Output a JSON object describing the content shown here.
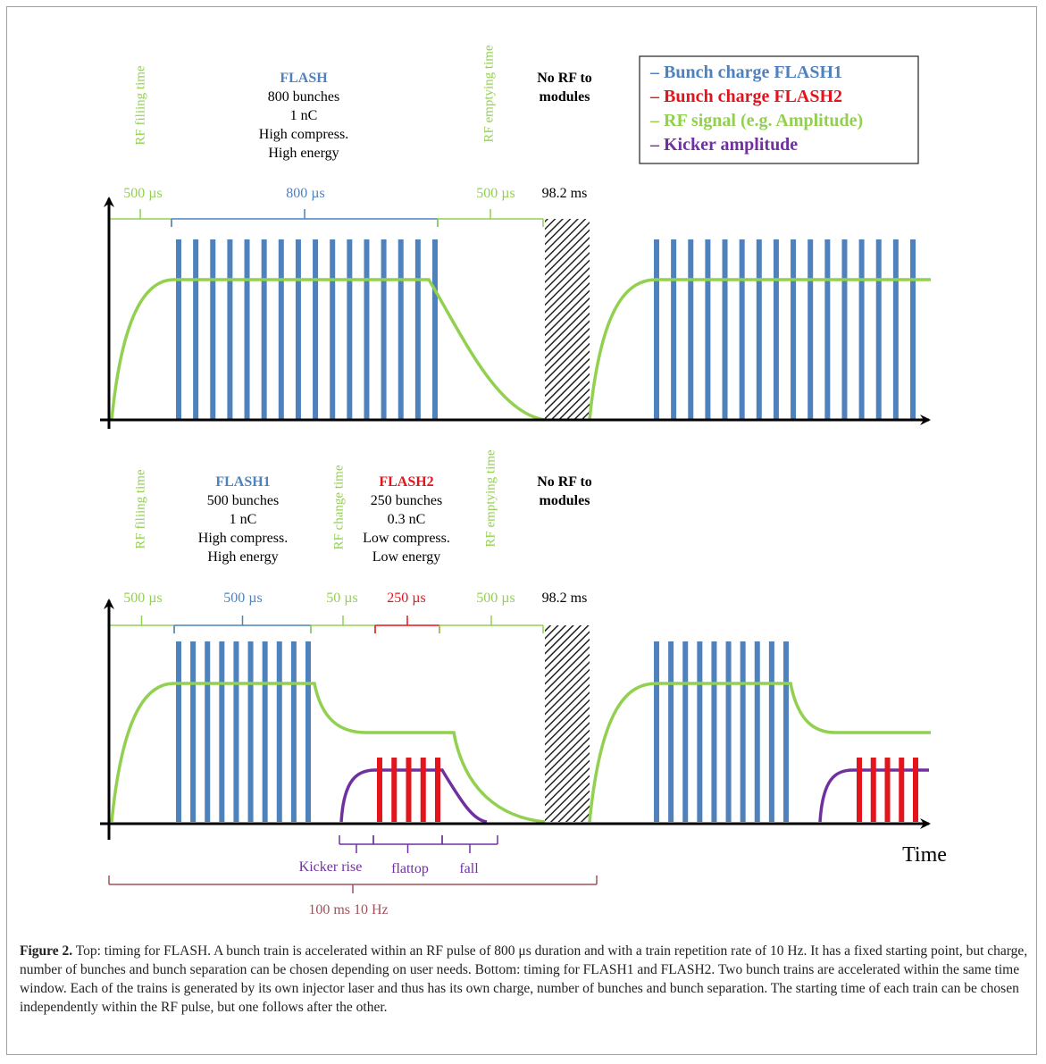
{
  "legend": [
    "– Bunch charge FLASH1",
    "– Bunch charge FLASH2",
    "– RF signal (e.g. Amplitude)",
    "– Kicker amplitude"
  ],
  "top": {
    "fill_label": "RF filiing time",
    "empty_label": "RF emptying time",
    "flash": [
      "FLASH",
      "800 bunches",
      "1 nC",
      "High compress.",
      "High energy"
    ],
    "no_rf": [
      "No RF to",
      "modules"
    ],
    "durations": [
      "500 µs",
      "800 µs",
      "500 µs",
      "98.2 ms"
    ]
  },
  "bottom": {
    "fill_label": "RF filiing time",
    "change_label": "RF change time",
    "empty_label": "RF emptying time",
    "flash1": [
      "FLASH1",
      "500 bunches",
      "1 nC",
      "High compress.",
      "High energy"
    ],
    "flash2": [
      "FLASH2",
      "250 bunches",
      "0.3 nC",
      "Low compress.",
      "Low energy"
    ],
    "no_rf": [
      "No RF to",
      "modules"
    ],
    "durations": [
      "500 µs",
      "500 µs",
      "50 µs",
      "250 µs",
      "500 µs",
      "98.2 ms"
    ],
    "kicker": [
      "Kicker rise",
      "flattop",
      "fall"
    ],
    "period": "100 ms  10 Hz",
    "time_label": "Time"
  },
  "caption": {
    "label": "Figure 2.",
    "text": " Top: timing for FLASH. A bunch train is accelerated within an RF pulse of 800 μs duration and with a train repetition rate of 10 Hz. It has a fixed starting point, but charge, number of bunches and bunch separation can be chosen depending on user needs. Bottom: timing for FLASH1 and FLASH2. Two bunch trains are accelerated within the same time window. Each of the trains is generated by its own injector laser and thus has its own charge, number of bunches and bunch separation. The starting time of each train can be chosen independently within the RF pulse, but one follows after the other."
  }
}
